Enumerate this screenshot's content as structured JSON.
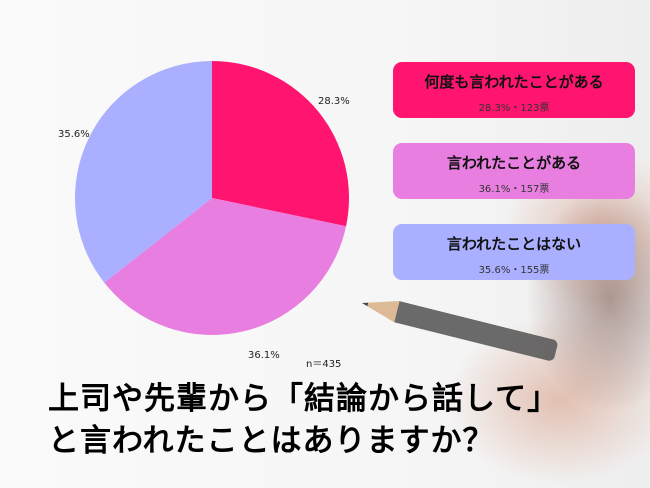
{
  "chart_data": {
    "type": "pie",
    "title": "上司や先輩から「結論から話して」と言われたことはありますか？",
    "n_label": "n＝435",
    "start": "top",
    "direction": "clockwise",
    "slices": [
      {
        "name": "何度も言われたことがある",
        "value": 28.3,
        "label": "28.3%",
        "votes_label": "28.3%・123票",
        "color": "#FF1470"
      },
      {
        "name": "言われたことがある",
        "value": 36.1,
        "label": "36.1%",
        "votes_label": "36.1%・157票",
        "color": "#E87FE0"
      },
      {
        "name": "言われたことはない",
        "value": 35.6,
        "label": "35.6%",
        "votes_label": "35.6%・155票",
        "color": "#AAAFFF"
      }
    ]
  },
  "title_lines": [
    "上司や先輩から「結論から話して」",
    "と言われたことはありますか？"
  ]
}
